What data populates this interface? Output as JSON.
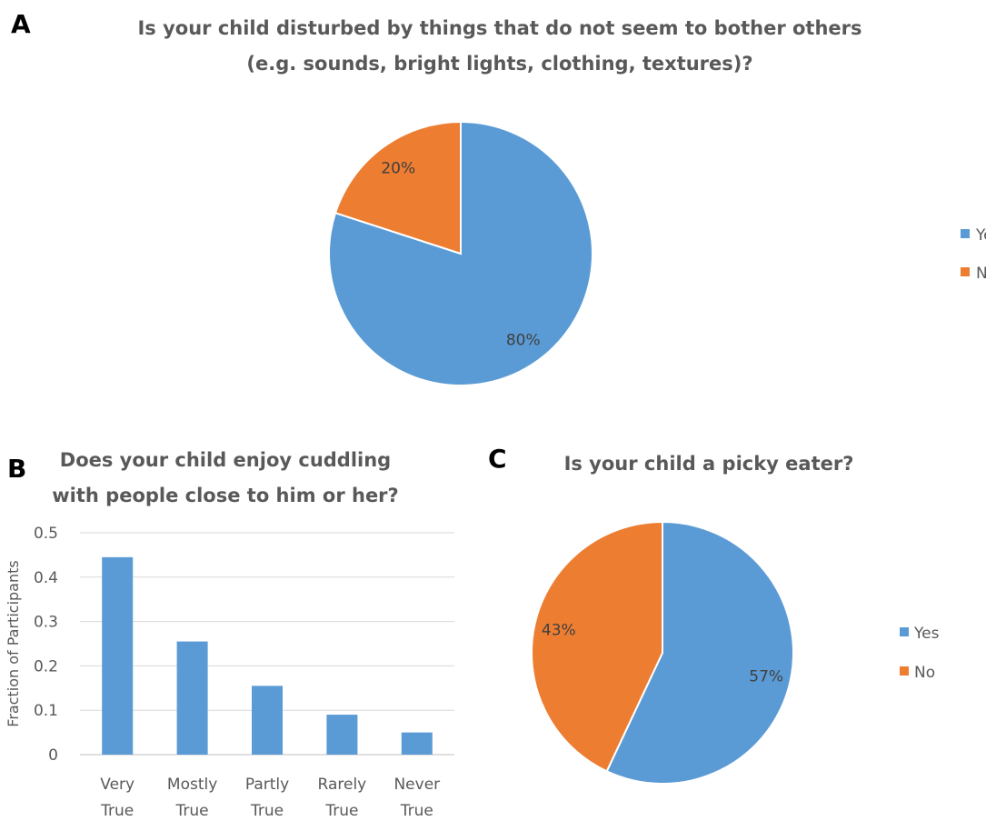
{
  "colors": {
    "yes": "#5b9bd5",
    "no": "#ed7d31",
    "text": "#595959",
    "grid": "#d9d9d9",
    "panel_label": "#000000"
  },
  "chart_data": [
    {
      "panel": "A",
      "type": "pie",
      "title": [
        "Is your child disturbed by things that do not seem to bother others",
        "(e.g. sounds, bright lights, clothing, textures)?"
      ],
      "slices": [
        {
          "name": "Yes",
          "value": 80,
          "label": "80%",
          "color": "#5b9bd5"
        },
        {
          "name": "No",
          "value": 20,
          "label": "20%",
          "color": "#ed7d31"
        }
      ],
      "legend": [
        "Yes",
        "No"
      ],
      "legend_position": "right"
    },
    {
      "panel": "B",
      "type": "bar",
      "title": [
        "Does your child enjoy cuddling",
        "with people close to him or her?"
      ],
      "ylabel": "Fraction of Participants",
      "xlabel": "",
      "ylim": [
        0,
        0.5
      ],
      "yticks": [
        "0",
        "0.1",
        "0.2",
        "0.3",
        "0.4",
        "0.5"
      ],
      "categories": [
        [
          "Very",
          "True"
        ],
        [
          "Mostly",
          "True"
        ],
        [
          "Partly",
          "True"
        ],
        [
          "Rarely",
          "True"
        ],
        [
          "Never",
          "True"
        ]
      ],
      "values": [
        0.445,
        0.255,
        0.155,
        0.09,
        0.05
      ],
      "grid": true,
      "color": "#5b9bd5"
    },
    {
      "panel": "C",
      "type": "pie",
      "title": [
        "Is your child a picky eater?"
      ],
      "slices": [
        {
          "name": "Yes",
          "value": 57,
          "label": "57%",
          "color": "#5b9bd5"
        },
        {
          "name": "No",
          "value": 43,
          "label": "43%",
          "color": "#ed7d31"
        }
      ],
      "legend": [
        "Yes",
        "No"
      ],
      "legend_position": "right"
    }
  ]
}
